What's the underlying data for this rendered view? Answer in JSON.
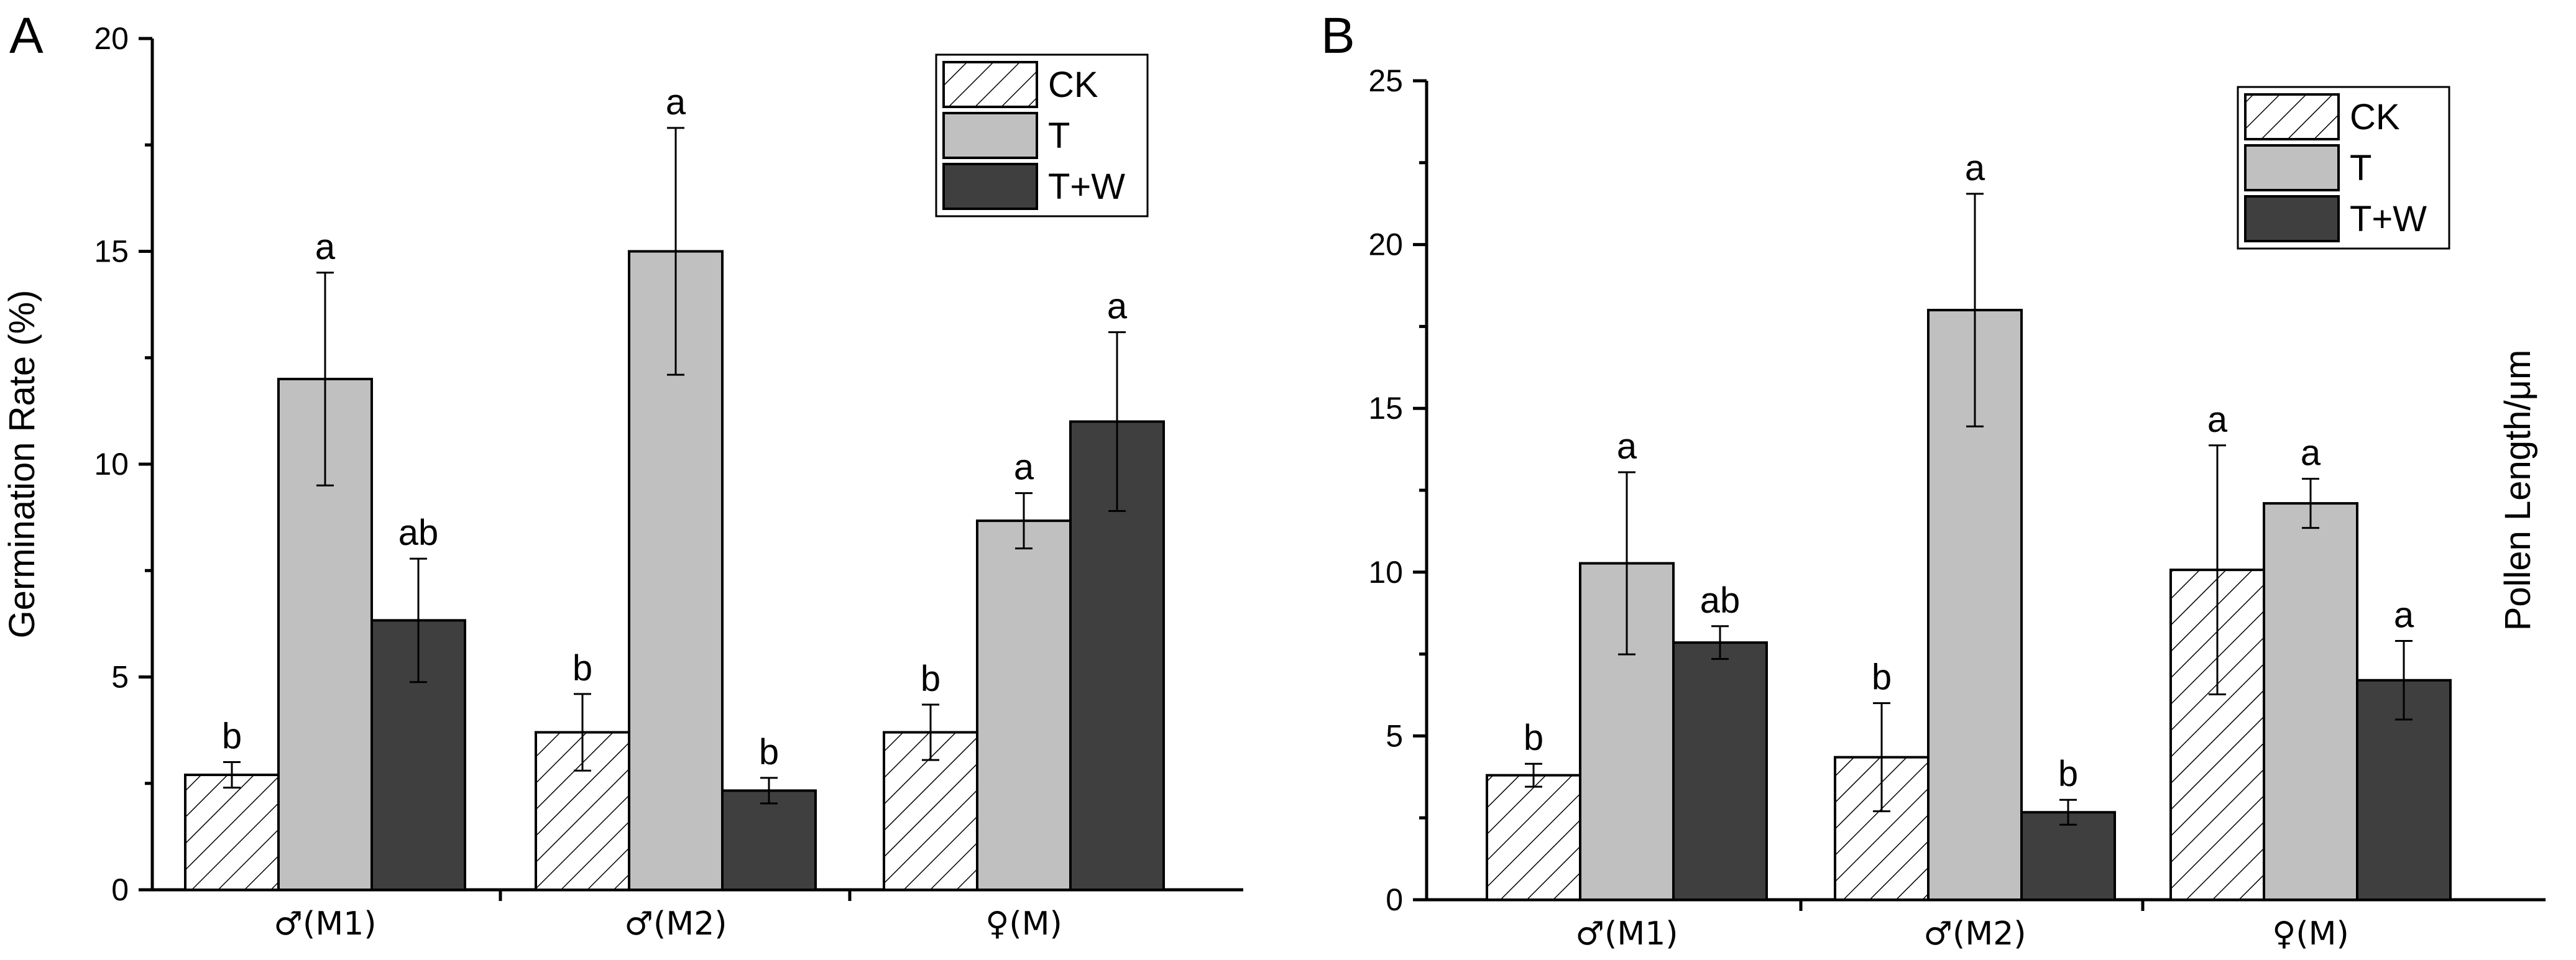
{
  "colors": {
    "CK": "hatch",
    "T": "#c0c0c0",
    "T+W": "#3f3f3f"
  },
  "chart_data": [
    {
      "panel": "A",
      "type": "bar",
      "ylabel": "Germination Rate (%)",
      "ylabel_side": "left",
      "ylim": [
        0,
        20
      ],
      "yticks": [
        0,
        5,
        10,
        15,
        20
      ],
      "categories": [
        "♂(M1)",
        "♂(M2)",
        "♀(M)"
      ],
      "legend": [
        "CK",
        "T",
        "T+W"
      ],
      "legend_position": "top-right",
      "series": [
        {
          "name": "CK",
          "values": [
            2.7,
            3.7,
            3.7
          ],
          "errors": [
            0.3,
            0.9,
            0.65
          ],
          "labels": [
            "b",
            "b",
            "b"
          ]
        },
        {
          "name": "T",
          "values": [
            12,
            15,
            8.67
          ],
          "errors": [
            2.5,
            2.9,
            0.65
          ],
          "labels": [
            "a",
            "a",
            "a"
          ]
        },
        {
          "name": "T+W",
          "values": [
            6.33,
            2.33,
            11
          ],
          "errors": [
            1.45,
            0.3,
            2.1
          ],
          "labels": [
            "ab",
            "b",
            "a"
          ]
        }
      ]
    },
    {
      "panel": "B",
      "type": "bar",
      "ylabel": "Pollen Length/μm",
      "ylabel_side": "right",
      "ylim": [
        0,
        25
      ],
      "yticks": [
        0,
        5,
        10,
        15,
        20,
        25
      ],
      "categories": [
        "♂(M1)",
        "♂(M2)",
        "♀(M)"
      ],
      "legend": [
        "CK",
        "T",
        "T+W"
      ],
      "legend_position": "top-right",
      "series": [
        {
          "name": "CK",
          "values": [
            3.8,
            4.35,
            10.07
          ],
          "errors": [
            0.35,
            1.65,
            3.8
          ],
          "labels": [
            "b",
            "b",
            "a"
          ]
        },
        {
          "name": "T",
          "values": [
            10.27,
            18,
            12.1
          ],
          "errors": [
            2.78,
            3.55,
            0.75
          ],
          "labels": [
            "a",
            "a",
            "a"
          ]
        },
        {
          "name": "T+W",
          "values": [
            7.85,
            2.67,
            6.7
          ],
          "errors": [
            0.5,
            0.38,
            1.2
          ],
          "labels": [
            "ab",
            "b",
            "a"
          ]
        }
      ]
    }
  ]
}
